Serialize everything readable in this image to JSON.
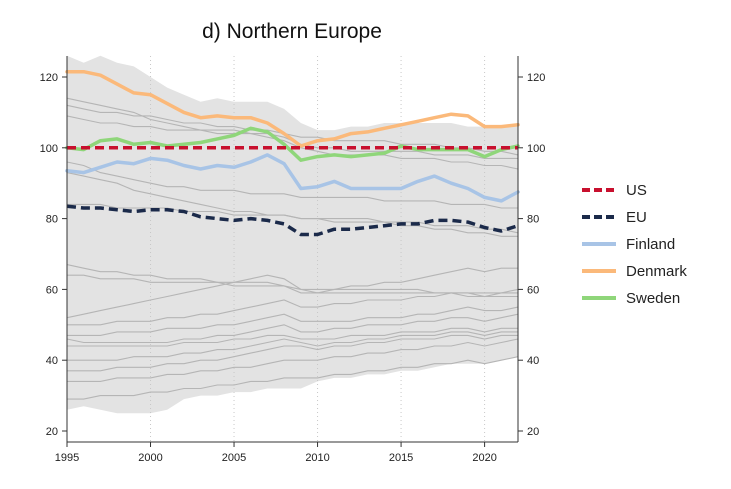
{
  "chart_data": {
    "type": "line",
    "title": "d) Northern Europe",
    "xlabel": "",
    "ylabel": "",
    "xlim": [
      1995,
      2022
    ],
    "ylim": [
      20,
      125
    ],
    "x_ticks": [
      1995,
      2000,
      2005,
      2010,
      2015,
      2020
    ],
    "y_ticks": [
      20,
      40,
      60,
      80,
      100,
      120
    ],
    "grid": true,
    "legend_position": "right",
    "x": [
      1995,
      1996,
      1997,
      1998,
      1999,
      2000,
      2001,
      2002,
      2003,
      2004,
      2005,
      2006,
      2007,
      2008,
      2009,
      2010,
      2011,
      2012,
      2013,
      2014,
      2015,
      2016,
      2017,
      2018,
      2019,
      2020,
      2021,
      2022
    ],
    "band": {
      "upper": [
        126,
        124,
        126,
        124,
        123,
        120,
        117,
        115,
        113,
        114,
        113,
        113,
        113,
        111,
        107,
        105,
        105,
        106,
        106,
        107,
        107,
        107,
        107,
        107,
        106,
        106,
        106,
        106
      ],
      "lower": [
        26,
        27,
        26,
        25,
        25,
        25,
        26,
        29,
        30,
        30,
        31,
        31,
        32,
        32,
        32,
        34,
        35,
        35,
        36,
        36,
        37,
        37,
        38,
        39,
        39,
        39,
        40,
        41
      ],
      "color": "#e3e3e3"
    },
    "background_series": [
      [
        114,
        113,
        112,
        111,
        110,
        108,
        107,
        106,
        105,
        105,
        105,
        104,
        104,
        103,
        101,
        100,
        100,
        99,
        99,
        99,
        99,
        99,
        98,
        98,
        98,
        97,
        97,
        97
      ],
      [
        112,
        111,
        110,
        110,
        109,
        109,
        108,
        107,
        107,
        106,
        106,
        105,
        105,
        104,
        103,
        103,
        102,
        102,
        102,
        102,
        101,
        101,
        101,
        100,
        100,
        99,
        99,
        98
      ],
      [
        109,
        108,
        107,
        107,
        106,
        106,
        105,
        105,
        105,
        104,
        104,
        104,
        103,
        102,
        100,
        99,
        98,
        98,
        98,
        98,
        97,
        97,
        97,
        96,
        96,
        95,
        95,
        94
      ],
      [
        96,
        95,
        93,
        92,
        91,
        90,
        89,
        89,
        88,
        88,
        88,
        87,
        87,
        87,
        86,
        86,
        86,
        86,
        86,
        85,
        85,
        85,
        85,
        84,
        84,
        84,
        83,
        83
      ],
      [
        93,
        92,
        91,
        90,
        88,
        87,
        86,
        85,
        84,
        83,
        82,
        82,
        81,
        81,
        80,
        80,
        80,
        80,
        80,
        79,
        79,
        79,
        78,
        78,
        78,
        77,
        77,
        76
      ],
      [
        84,
        84,
        84,
        83,
        83,
        83,
        83,
        82,
        82,
        82,
        81,
        81,
        81,
        81,
        80,
        80,
        79,
        79,
        79,
        79,
        78,
        78,
        77,
        77,
        76,
        76,
        75,
        75
      ],
      [
        67,
        66,
        65,
        65,
        64,
        64,
        63,
        63,
        63,
        62,
        62,
        62,
        62,
        61,
        60,
        60,
        60,
        60,
        60,
        60,
        60,
        60,
        59,
        59,
        59,
        59,
        59,
        59
      ],
      [
        64,
        64,
        63,
        63,
        63,
        62,
        62,
        62,
        62,
        62,
        61,
        61,
        61,
        61,
        59,
        59,
        59,
        59,
        59,
        59,
        59,
        59,
        59,
        59,
        58,
        58,
        58,
        58
      ],
      [
        52,
        53,
        54,
        55,
        56,
        57,
        58,
        59,
        60,
        61,
        62,
        63,
        64,
        63,
        60,
        59,
        60,
        61,
        61,
        62,
        62,
        63,
        64,
        65,
        66,
        65,
        66,
        66
      ],
      [
        50,
        50,
        50,
        51,
        51,
        51,
        52,
        52,
        53,
        53,
        54,
        55,
        56,
        57,
        55,
        55,
        56,
        56,
        57,
        57,
        57,
        58,
        58,
        59,
        59,
        58,
        59,
        60
      ],
      [
        47,
        47,
        47,
        48,
        48,
        48,
        49,
        49,
        49,
        50,
        50,
        51,
        52,
        53,
        51,
        51,
        51,
        51,
        52,
        52,
        52,
        53,
        53,
        54,
        55,
        54,
        54,
        55
      ],
      [
        46,
        45,
        45,
        45,
        45,
        45,
        45,
        46,
        46,
        47,
        47,
        48,
        49,
        50,
        48,
        48,
        49,
        49,
        50,
        50,
        50,
        51,
        51,
        52,
        52,
        51,
        52,
        53
      ],
      [
        44,
        44,
        44,
        44,
        44,
        44,
        44,
        45,
        45,
        45,
        46,
        46,
        47,
        47,
        46,
        46,
        46,
        47,
        47,
        47,
        48,
        48,
        48,
        49,
        49,
        48,
        49,
        49
      ],
      [
        40,
        40,
        40,
        40,
        41,
        41,
        41,
        42,
        42,
        43,
        43,
        44,
        45,
        46,
        45,
        44,
        45,
        45,
        46,
        46,
        47,
        47,
        47,
        48,
        48,
        47,
        48,
        48
      ],
      [
        37,
        37,
        37,
        38,
        38,
        38,
        39,
        39,
        40,
        40,
        41,
        42,
        43,
        44,
        44,
        43,
        44,
        44,
        45,
        45,
        46,
        46,
        46,
        47,
        47,
        46,
        47,
        47
      ],
      [
        34,
        34,
        34,
        35,
        35,
        35,
        36,
        36,
        37,
        37,
        38,
        38,
        39,
        40,
        40,
        40,
        41,
        41,
        42,
        42,
        43,
        43,
        44,
        44,
        45,
        44,
        45,
        46
      ],
      [
        29,
        29,
        30,
        30,
        30,
        31,
        31,
        32,
        32,
        33,
        33,
        34,
        34,
        35,
        35,
        35,
        36,
        36,
        37,
        37,
        38,
        38,
        39,
        39,
        40,
        39,
        40,
        41
      ]
    ],
    "series": [
      {
        "name": "US",
        "color": "#c8102e",
        "style": "dashed",
        "values": [
          100,
          100,
          100,
          100,
          100,
          100,
          100,
          100,
          100,
          100,
          100,
          100,
          100,
          100,
          100,
          100,
          100,
          100,
          100,
          100,
          100,
          100,
          100,
          100,
          100,
          100,
          100,
          100
        ]
      },
      {
        "name": "EU",
        "color": "#1b2a4a",
        "style": "dashed",
        "values": [
          83.5,
          83,
          83,
          82.5,
          82,
          82.5,
          82.5,
          82,
          80.5,
          80,
          79.5,
          80,
          79.5,
          78.5,
          75.5,
          75.5,
          77,
          77,
          77.5,
          78,
          78.5,
          78.5,
          79.5,
          79.5,
          79,
          77.5,
          76.5,
          78
        ]
      },
      {
        "name": "Finland",
        "color": "#a8c4e6",
        "style": "solid",
        "values": [
          93.5,
          93,
          94.5,
          96,
          95.5,
          97,
          96.5,
          95,
          94,
          95,
          94.5,
          96,
          98,
          95.5,
          88.5,
          89,
          90.5,
          88.5,
          88.5,
          88.5,
          88.5,
          90.5,
          92,
          90,
          88.5,
          86,
          85,
          87.5
        ]
      },
      {
        "name": "Denmark",
        "color": "#fbb97a",
        "style": "solid",
        "values": [
          121.5,
          121.5,
          120.5,
          118,
          115.5,
          115,
          112.5,
          110,
          108.5,
          109,
          108.5,
          108.5,
          107,
          104,
          100.5,
          102,
          102.5,
          104,
          104.5,
          105.5,
          106.5,
          107.5,
          108.5,
          109.5,
          109,
          106,
          106,
          106.5
        ]
      },
      {
        "name": "Sweden",
        "color": "#8fd67a",
        "style": "solid",
        "values": [
          100,
          99.5,
          102,
          102.5,
          101,
          101.5,
          100.5,
          101,
          101.5,
          102.5,
          103.5,
          105.5,
          104.5,
          101,
          96.5,
          97.5,
          98,
          97.5,
          98,
          98.5,
          100.5,
          99.5,
          99.5,
          99.5,
          99.5,
          97.5,
          99.5,
          100.5
        ]
      }
    ]
  }
}
